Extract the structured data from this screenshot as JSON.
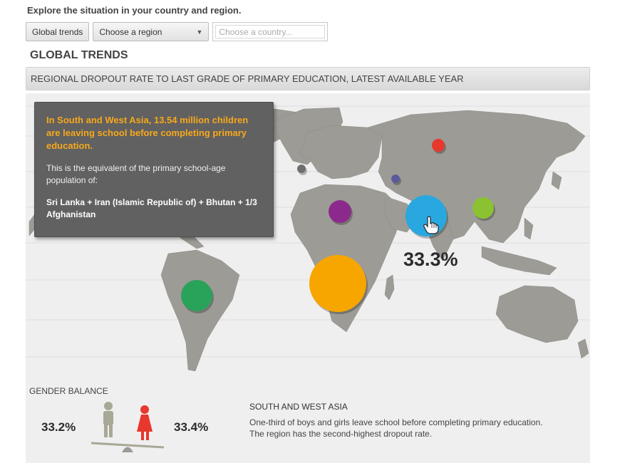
{
  "intro": "Explore the situation in your country and region.",
  "controls": {
    "global_trends_label": "Global trends",
    "region_select_value": "Choose a region",
    "country_placeholder": "Choose a country..."
  },
  "section_title": "GLOBAL TRENDS",
  "banner_title": "REGIONAL DROPOUT RATE TO LAST GRADE OF PRIMARY EDUCATION, LATEST AVAILABLE YEAR",
  "tooltip": {
    "headline": "In South and West Asia, 13.54 million children are leaving school before completing primary education.",
    "equivalent": "This is the equivalent of the primary school-age population of:",
    "countries": "Sri Lanka + Iran (Islamic Republic of) + Bhutan + 1/3 Afghanistan"
  },
  "highlight_percent": "33.3%",
  "bubbles": [
    {
      "region": "Sub-Saharan Africa",
      "color": "#f7a600"
    },
    {
      "region": "South and West Asia",
      "color": "#29a8e0"
    },
    {
      "region": "Latin America",
      "color": "#2aa35a"
    },
    {
      "region": "Arab States",
      "color": "#8b2a8c"
    },
    {
      "region": "East Asia",
      "color": "#8bc232"
    },
    {
      "region": "Central and Eastern Europe / Russia",
      "color": "#e8372c"
    },
    {
      "region": "Central Asia",
      "color": "#5c5a9c"
    },
    {
      "region": "Western Europe",
      "color": "#6e6e6e"
    }
  ],
  "gender": {
    "title": "GENDER BALANCE",
    "boys_percent": "33.2%",
    "girls_percent": "33.4%",
    "boy_color": "#a8a896",
    "girl_color": "#e8372c"
  },
  "region_info": {
    "name": "SOUTH AND WEST ASIA",
    "description": "One-third of boys and girls leave school before completing primary education. The region has the second-highest dropout rate."
  }
}
